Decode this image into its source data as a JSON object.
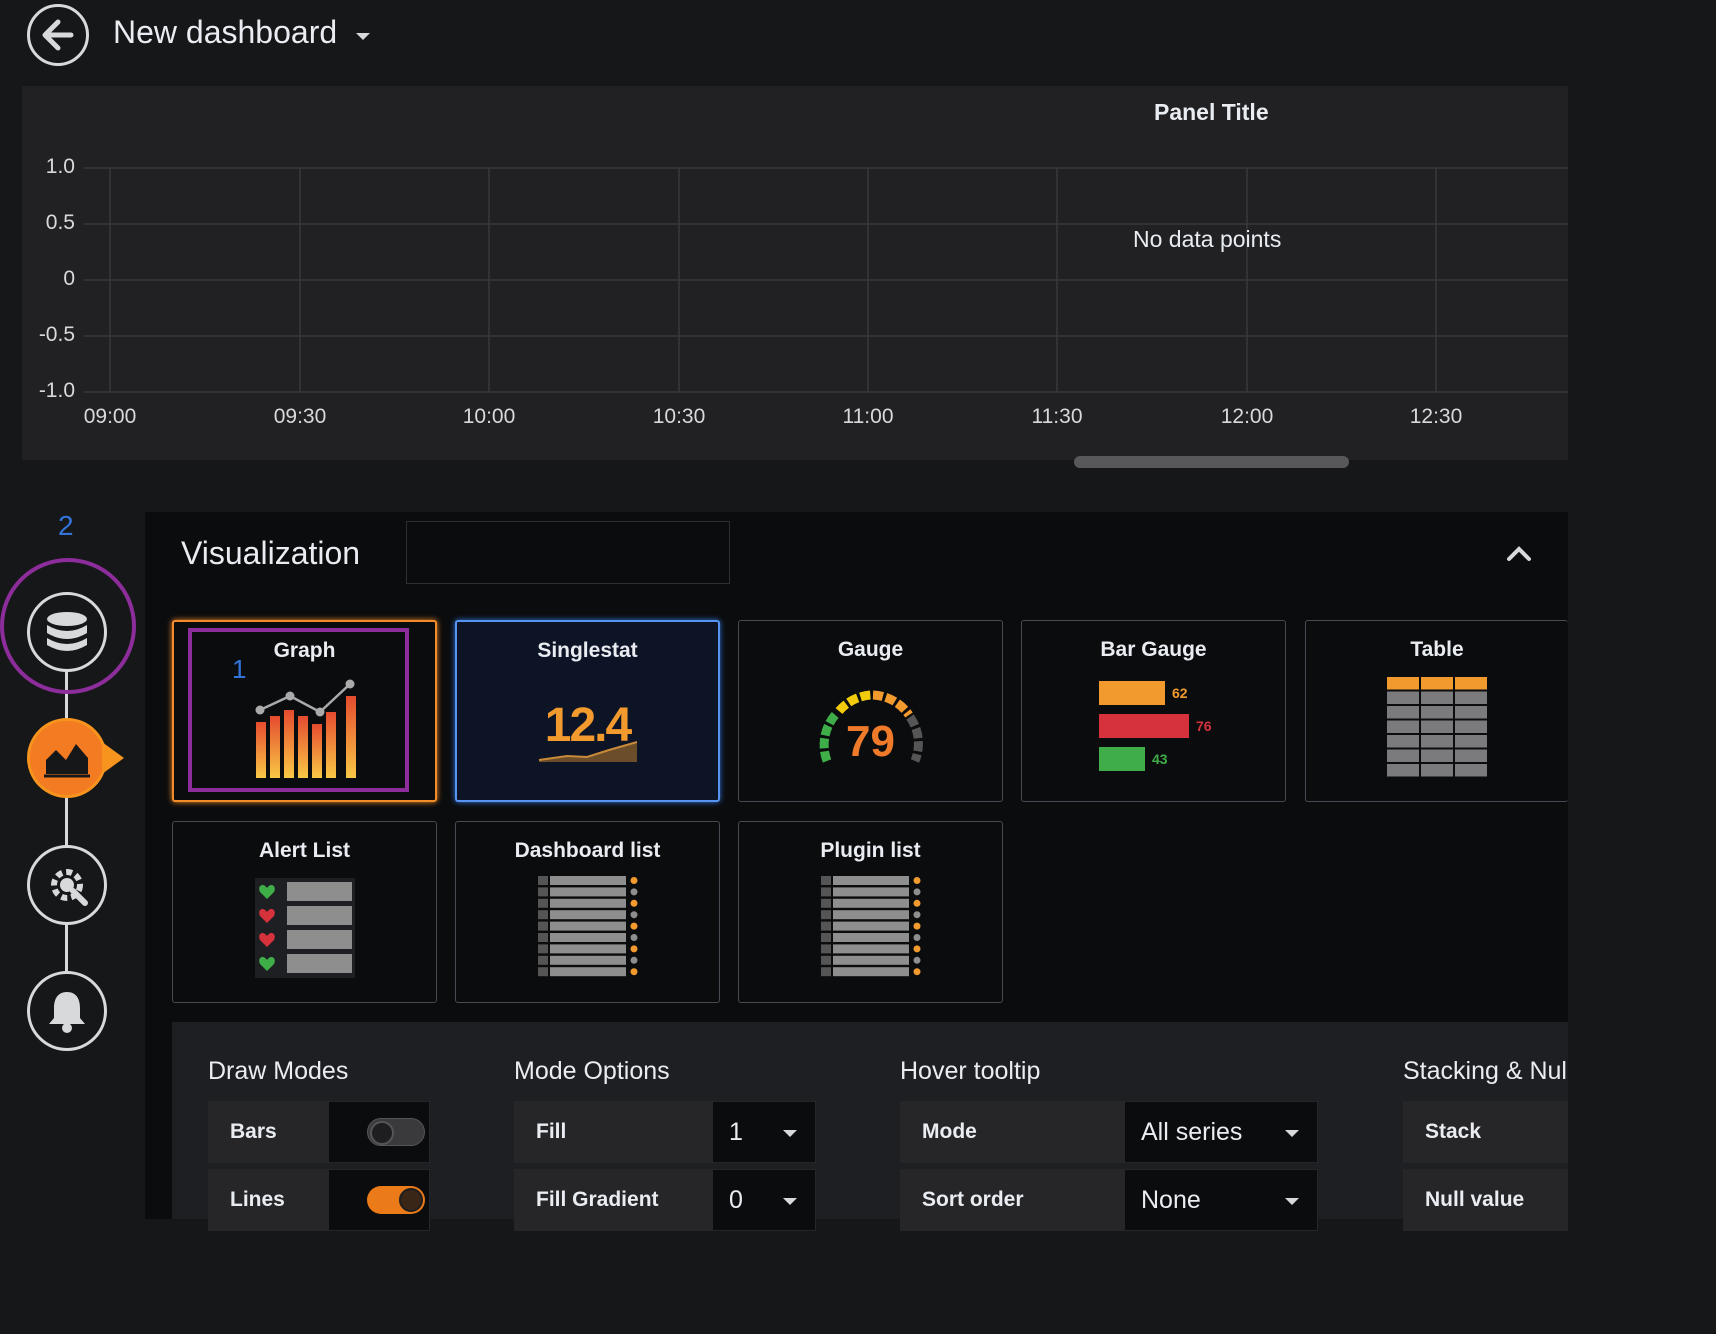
{
  "header": {
    "title": "New dashboard"
  },
  "panel": {
    "title": "Panel Title",
    "empty_message": "No data points",
    "y_ticks": [
      "1.0",
      "0.5",
      "0",
      "-0.5",
      "-1.0"
    ],
    "x_ticks": [
      "09:00",
      "09:30",
      "10:00",
      "10:30",
      "11:00",
      "11:30",
      "12:00",
      "12:30"
    ]
  },
  "steps": {
    "current_number": "2"
  },
  "visualization": {
    "title": "Visualization",
    "search_value": "",
    "callout_number": "1",
    "cards": [
      {
        "name": "Graph",
        "state": "selected"
      },
      {
        "name": "Singlestat",
        "state": "hover",
        "value": "12.4"
      },
      {
        "name": "Gauge",
        "value": "79"
      },
      {
        "name": "Bar Gauge",
        "values": [
          "62",
          "76",
          "43"
        ]
      },
      {
        "name": "Table"
      },
      {
        "name": "Alert List"
      },
      {
        "name": "Dashboard list"
      },
      {
        "name": "Plugin list"
      }
    ]
  },
  "options": {
    "draw_modes": {
      "title": "Draw Modes",
      "bars_label": "Bars",
      "bars_on": false,
      "lines_label": "Lines",
      "lines_on": true
    },
    "mode_options": {
      "title": "Mode Options",
      "fill_label": "Fill",
      "fill_value": "1",
      "fill_gradient_label": "Fill Gradient",
      "fill_gradient_value": "0"
    },
    "hover_tooltip": {
      "title": "Hover tooltip",
      "mode_label": "Mode",
      "mode_value": "All series",
      "sort_label": "Sort order",
      "sort_value": "None"
    },
    "stacking": {
      "title": "Stacking & Nul",
      "stack_label": "Stack",
      "null_label": "Null value"
    }
  },
  "colors": {
    "accent": "#f38c28",
    "selected_ring": "#8d2d9c",
    "hover_blue": "#5794f2",
    "step_number": "#3274d9"
  }
}
